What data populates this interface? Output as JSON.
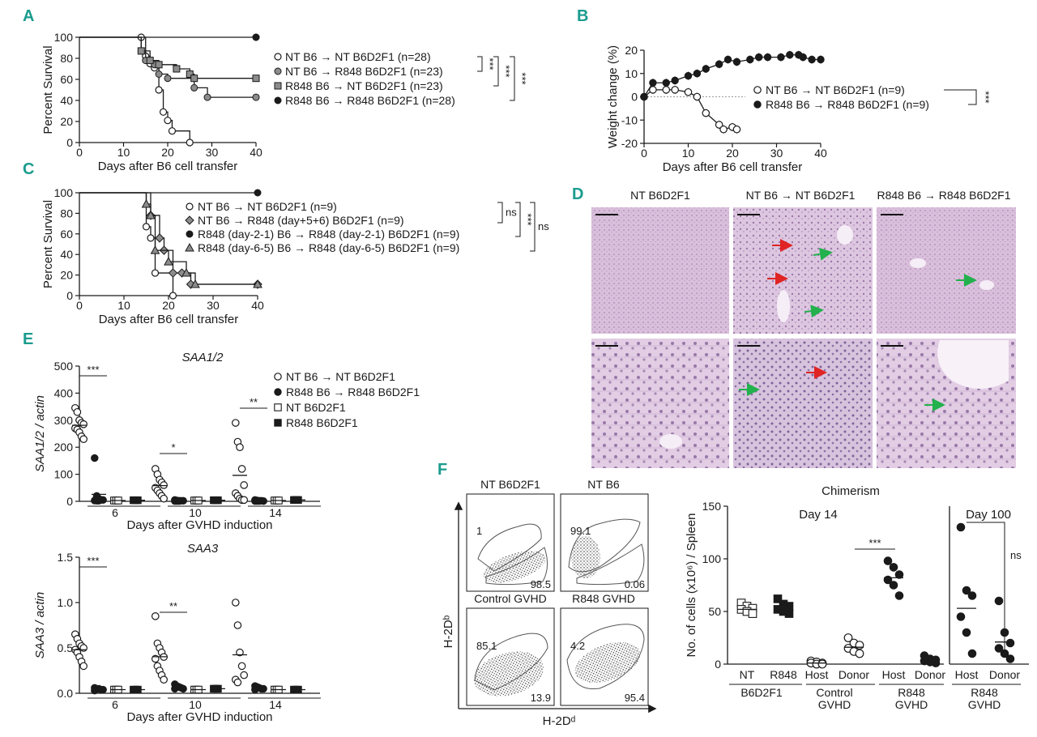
{
  "figure": {
    "panel_letters": [
      "A",
      "B",
      "C",
      "D",
      "E",
      "F"
    ]
  },
  "chart_data": [
    {
      "panel": "A",
      "type": "line",
      "ylabel": "Percent Survival",
      "xlabel": "Days after B6 cell transfer",
      "xlim": [
        0,
        40
      ],
      "ylim": [
        0,
        100
      ],
      "xticks": [
        0,
        10,
        20,
        30,
        40
      ],
      "yticks": [
        0,
        20,
        40,
        60,
        80,
        100
      ],
      "step": true,
      "series": [
        {
          "name": "NT B6 → NT B6D2F1 (n=28)",
          "marker": "open-circle",
          "x": [
            0,
            14,
            15,
            16,
            17,
            18,
            19,
            20,
            21,
            25
          ],
          "y": [
            100,
            100,
            82,
            75,
            71,
            50,
            29,
            21,
            11,
            0
          ]
        },
        {
          "name": "NT B6 → R848 B6D2F1 (n=23)",
          "marker": "grey-circle",
          "x": [
            0,
            14,
            15,
            17,
            18,
            20,
            26,
            29,
            40
          ],
          "y": [
            100,
            87,
            78,
            74,
            65,
            61,
            52,
            43,
            43
          ]
        },
        {
          "name": "R848 B6 → NT B6D2F1 (n=23)",
          "marker": "grey-square",
          "x": [
            0,
            14,
            16,
            18,
            22,
            25,
            26,
            40
          ],
          "y": [
            100,
            87,
            78,
            74,
            70,
            65,
            61,
            61
          ]
        },
        {
          "name": "R848 B6 → R848 B6D2F1 (n=28)",
          "marker": "black-circle",
          "x": [
            0,
            40
          ],
          "y": [
            100,
            100
          ]
        }
      ],
      "significance": [
        "***",
        "***",
        "***"
      ]
    },
    {
      "panel": "B",
      "type": "line",
      "ylabel": "Weight change (%)",
      "xlabel": "Days after B6 cell transfer",
      "xlim": [
        0,
        40
      ],
      "ylim": [
        -20,
        20
      ],
      "xticks": [
        0,
        10,
        20,
        30,
        40
      ],
      "yticks": [
        -20,
        -10,
        0,
        10,
        20
      ],
      "series": [
        {
          "name": "NT B6 → NT B6D2F1 (n=9)",
          "marker": "open-circle",
          "x": [
            0,
            2,
            5,
            7,
            10,
            12,
            14,
            17,
            18,
            20,
            21
          ],
          "y": [
            0,
            3,
            3,
            3,
            2,
            0,
            -7,
            -12,
            -14,
            -13,
            -14
          ]
        },
        {
          "name": "R848 B6 → R848 B6D2F1 (n=9)",
          "marker": "black-circle",
          "x": [
            0,
            2,
            5,
            7,
            10,
            12,
            14,
            17,
            19,
            21,
            24,
            26,
            28,
            31,
            33,
            35,
            36,
            38,
            40
          ],
          "y": [
            0,
            6,
            6,
            7,
            9,
            10,
            12,
            14,
            16,
            15,
            16,
            17,
            17,
            17,
            18,
            18,
            17,
            16,
            16
          ]
        }
      ],
      "significance": [
        "***"
      ]
    },
    {
      "panel": "C",
      "type": "line",
      "ylabel": "Percent Survival",
      "xlabel": "Days after B6 cell transfer",
      "xlim": [
        0,
        40
      ],
      "ylim": [
        0,
        100
      ],
      "xticks": [
        0,
        10,
        20,
        30,
        40
      ],
      "yticks": [
        0,
        20,
        40,
        60,
        80,
        100
      ],
      "step": true,
      "series": [
        {
          "name": "NT B6 → NT B6D2F1 (n=9)",
          "marker": "open-circle",
          "x": [
            0,
            15,
            16,
            17,
            21
          ],
          "y": [
            100,
            67,
            56,
            22,
            0
          ]
        },
        {
          "name": "NT B6 → R848 (day+5+6) B6D2F1 (n=9)",
          "marker": "grey-diamond",
          "x": [
            0,
            16,
            18,
            19,
            21,
            23,
            25,
            40
          ],
          "y": [
            100,
            78,
            56,
            44,
            22,
            22,
            11,
            11
          ]
        },
        {
          "name": "R848 (day-2-1) B6 → R848 (day-2-1) B6D2F1 (n=9)",
          "marker": "black-circle",
          "x": [
            0,
            40
          ],
          "y": [
            100,
            100
          ]
        },
        {
          "name": "R848 (day-6-5) B6 → R848 (day-6-5) B6D2F1 (n=9)",
          "marker": "grey-triangle",
          "x": [
            0,
            15,
            16,
            17,
            20,
            24,
            26,
            40
          ],
          "y": [
            100,
            89,
            78,
            44,
            33,
            22,
            11,
            11
          ]
        }
      ],
      "significance": [
        "ns",
        "***",
        "ns"
      ]
    },
    {
      "panel": "E1",
      "type": "scatter",
      "title": "SAA1/2",
      "ylabel": "SAA1/2 / actin",
      "xlabel": "Days after GVHD induction",
      "categories": [
        "6",
        "10",
        "14"
      ],
      "ylim": [
        0,
        500
      ],
      "yticks": [
        0,
        100,
        200,
        300,
        400,
        500
      ],
      "series": [
        {
          "name": "NT B6 → NT B6D2F1",
          "marker": "open-circle",
          "values": [
            [
              345,
              330,
              300,
              290,
              285,
              270,
              265,
              255,
              240,
              230
            ],
            [
              120,
              100,
              80,
              70,
              60,
              50,
              40,
              30,
              20,
              10
            ],
            [
              290,
              220,
              200,
              120,
              60,
              30,
              20,
              10,
              5,
              5
            ]
          ]
        },
        {
          "name": "R848 B6 → R848 B6D2F1",
          "marker": "black-circle",
          "values": [
            [
              160,
              20,
              10,
              5,
              5,
              3,
              2,
              2
            ],
            [
              5,
              3,
              2,
              2,
              2,
              1,
              1,
              1
            ],
            [
              5,
              3,
              2,
              2,
              1,
              1,
              1,
              1
            ]
          ]
        },
        {
          "name": "NT B6D2F1",
          "marker": "open-square",
          "values": [
            [
              3,
              3,
              3
            ],
            [
              3,
              3,
              3
            ],
            [
              3,
              3,
              3
            ]
          ]
        },
        {
          "name": "R848 B6D2F1",
          "marker": "black-square",
          "values": [
            [
              4,
              4,
              4
            ],
            [
              4,
              4,
              4
            ],
            [
              5,
              5,
              5
            ]
          ]
        }
      ],
      "significance": [
        "***",
        "*",
        "**"
      ]
    },
    {
      "panel": "E2",
      "type": "scatter",
      "title": "SAA3",
      "ylabel": "SAA3 / actin",
      "xlabel": "Days after GVHD induction",
      "categories": [
        "6",
        "10",
        "14"
      ],
      "ylim": [
        0,
        1.5
      ],
      "yticks": [
        0.0,
        0.5,
        1.0,
        1.5
      ],
      "series": [
        {
          "name": "NT B6 → NT B6D2F1",
          "marker": "open-circle",
          "values": [
            [
              0.65,
              0.6,
              0.55,
              0.52,
              0.5,
              0.48,
              0.45,
              0.4,
              0.35,
              0.3
            ],
            [
              0.85,
              0.55,
              0.5,
              0.45,
              0.4,
              0.38,
              0.3,
              0.25,
              0.2,
              0.15
            ],
            [
              1.0,
              0.75,
              0.45,
              0.3,
              0.2,
              0.15,
              0.12
            ]
          ]
        },
        {
          "name": "R848 B6 → R848 B6D2F1",
          "marker": "black-circle",
          "values": [
            [
              0.06,
              0.05,
              0.05,
              0.04,
              0.04,
              0.03
            ],
            [
              0.1,
              0.08,
              0.07,
              0.06,
              0.05,
              0.05
            ],
            [
              0.08,
              0.07,
              0.06,
              0.05,
              0.05,
              0.04
            ]
          ]
        },
        {
          "name": "NT B6D2F1",
          "marker": "open-square",
          "values": [
            [
              0.04,
              0.04,
              0.04
            ],
            [
              0.04,
              0.04,
              0.04
            ],
            [
              0.04,
              0.04,
              0.04
            ]
          ]
        },
        {
          "name": "R848 B6D2F1",
          "marker": "black-square",
          "values": [
            [
              0.04,
              0.04,
              0.04
            ],
            [
              0.05,
              0.05,
              0.05
            ],
            [
              0.04,
              0.04,
              0.04
            ]
          ]
        }
      ],
      "significance": [
        "***",
        "**"
      ]
    },
    {
      "panel": "F-chimerism",
      "type": "scatter",
      "title": "Chimerism",
      "ylabel": "No. of cells (x10⁶) / Spleen",
      "ylim": [
        0,
        150
      ],
      "yticks": [
        0,
        50,
        100,
        150
      ],
      "sections": [
        "Day 14",
        "Day 100"
      ],
      "groups": [
        {
          "label": "NT",
          "group": "B6D2F1",
          "marker": "open-square",
          "values": [
            58,
            55,
            53,
            52,
            50,
            48
          ],
          "mean": 52
        },
        {
          "label": "R848",
          "group": "B6D2F1",
          "marker": "black-square",
          "values": [
            62,
            57,
            55,
            52,
            50,
            48
          ],
          "mean": 54
        },
        {
          "label": "Host",
          "group": "Control GVHD",
          "marker": "open-circle",
          "values": [
            3,
            2,
            1,
            1,
            0,
            0
          ],
          "mean": 1
        },
        {
          "label": "Donor",
          "group": "Control GVHD",
          "marker": "open-circle",
          "values": [
            25,
            20,
            18,
            15,
            12,
            10
          ],
          "mean": 16
        },
        {
          "label": "Host",
          "group": "R848 GVHD",
          "marker": "black-circle",
          "values": [
            98,
            92,
            85,
            80,
            75,
            65
          ],
          "mean": 82
        },
        {
          "label": "Donor",
          "group": "R848 GVHD",
          "marker": "black-circle",
          "values": [
            8,
            5,
            4,
            3,
            2,
            1
          ],
          "mean": 4
        },
        {
          "label": "Host",
          "group": "R848 GVHD",
          "section": "Day 100",
          "marker": "black-circle",
          "values": [
            130,
            70,
            65,
            45,
            30,
            10
          ],
          "mean": 53
        },
        {
          "label": "Donor",
          "group": "R848 GVHD",
          "section": "Day 100",
          "marker": "black-circle",
          "values": [
            60,
            30,
            20,
            15,
            10,
            5
          ],
          "mean": 21
        }
      ],
      "group_labels": [
        "B6D2F1",
        "Control GVHD",
        "R848 GVHD",
        "R848 GVHD"
      ],
      "significance": [
        "***",
        "ns"
      ]
    }
  ],
  "histology": {
    "titles": [
      "NT B6D2F1",
      "NT B6 → NT B6D2F1",
      "R848 B6 → R848 B6D2F1"
    ]
  },
  "flow": {
    "ylabel": "H-2Dᵇ",
    "xlabel": "H-2Dᵈ",
    "plots": [
      {
        "title": "NT B6D2F1",
        "upper": "1",
        "lower": "98.5"
      },
      {
        "title": "NT B6",
        "upper": "99.1",
        "lower": "0.06"
      },
      {
        "title": "Control GVHD",
        "upper": "85.1",
        "lower": "13.9"
      },
      {
        "title": "R848 GVHD",
        "upper": "4.2",
        "lower": "95.4"
      }
    ]
  }
}
